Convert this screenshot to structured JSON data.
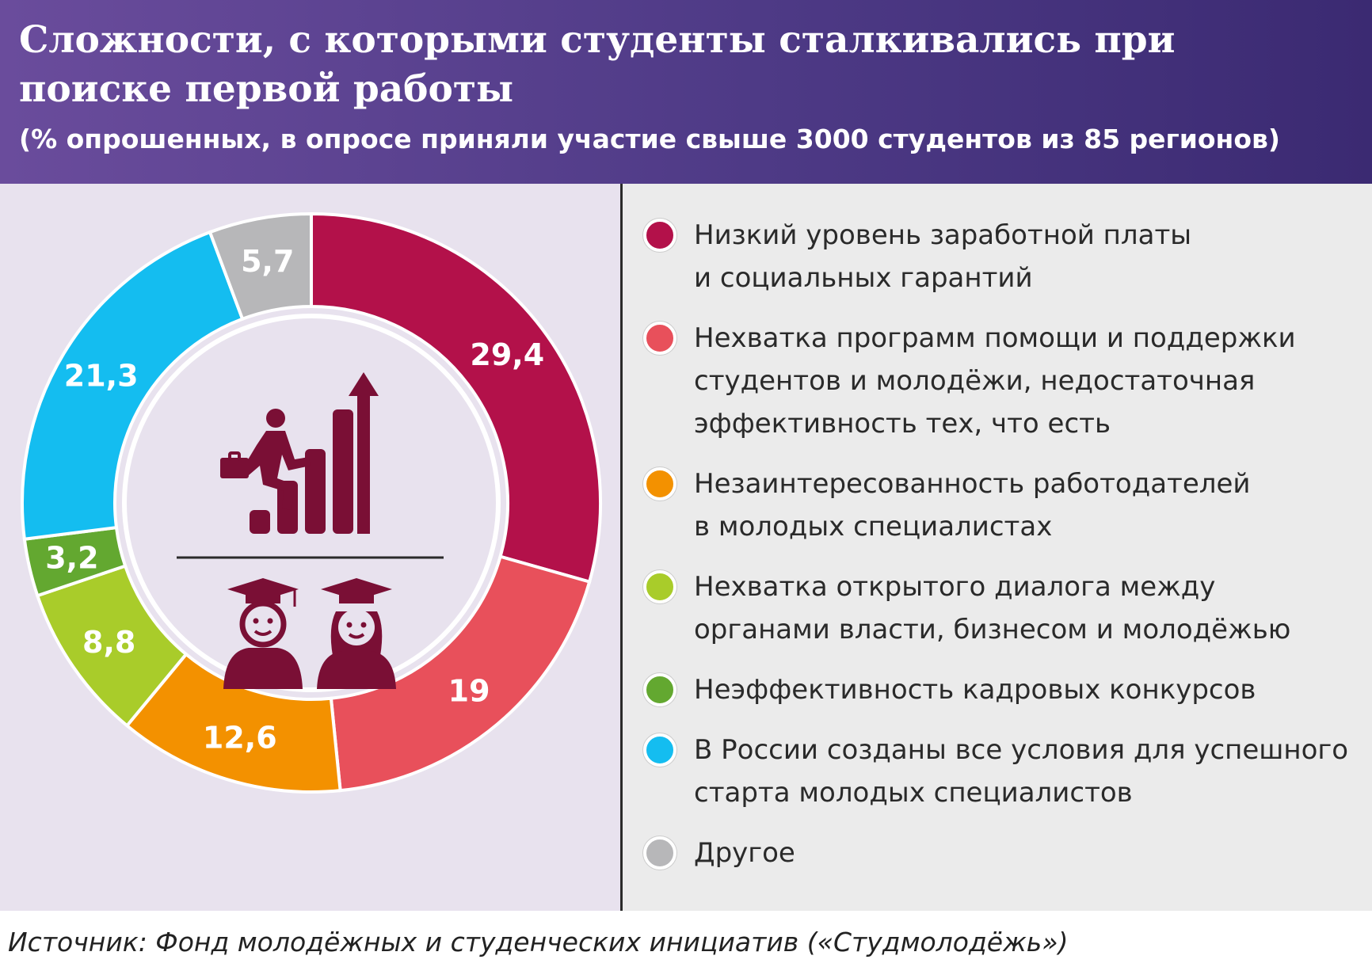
{
  "header": {
    "title": "Сложности, с которыми студенты сталкивались при поиске первой работы",
    "subtitle": "(% опрошенных, в опросе приняли участие свыше 3000 студентов из 85 регионов)"
  },
  "chart_data": {
    "type": "pie",
    "title": "Сложности, с которыми студенты сталкивались при поиске первой работы",
    "subtitle": "(% опрошенных, в опросе приняли участие свыше 3000 студентов из 85 регионов)",
    "legend_position": "right",
    "slices": [
      {
        "label": "Низкий уровень заработной платы\nи социальных гарантий",
        "value": 29.4,
        "value_label": "29,4",
        "color": "#b3114a"
      },
      {
        "label": "Нехватка программ помощи и поддержки\nстудентов и молодёжи, недостаточная\nэффективность тех, что есть",
        "value": 19,
        "value_label": "19",
        "color": "#e8505b"
      },
      {
        "label": "Незаинтересованность работодателей\nв молодых специалистах",
        "value": 12.6,
        "value_label": "12,6",
        "color": "#f39100"
      },
      {
        "label": "Нехватка открытого диалога между\nорганами власти, бизнесом и молодёжью",
        "value": 8.8,
        "value_label": "8,8",
        "color": "#a9cc2a"
      },
      {
        "label": "Неэффективность кадровых конкурсов",
        "value": 3.2,
        "value_label": "3,2",
        "color": "#63a830"
      },
      {
        "label": "В России созданы все условия для успешного\nстарта молодых специалистов",
        "value": 21.3,
        "value_label": "21,3",
        "color": "#14bdf0"
      },
      {
        "label": "Другое",
        "value": 5.7,
        "value_label": "5,7",
        "color": "#b7b7b9"
      }
    ]
  },
  "icons": {
    "career_growth": "person-climbing-bar-chart-icon",
    "graduates": "graduates-icon",
    "icon_color": "#7a0f35"
  },
  "footer": {
    "source": "Источник: Фонд молодёжных и студенческих инициатив («Студмолодёжь»)"
  }
}
